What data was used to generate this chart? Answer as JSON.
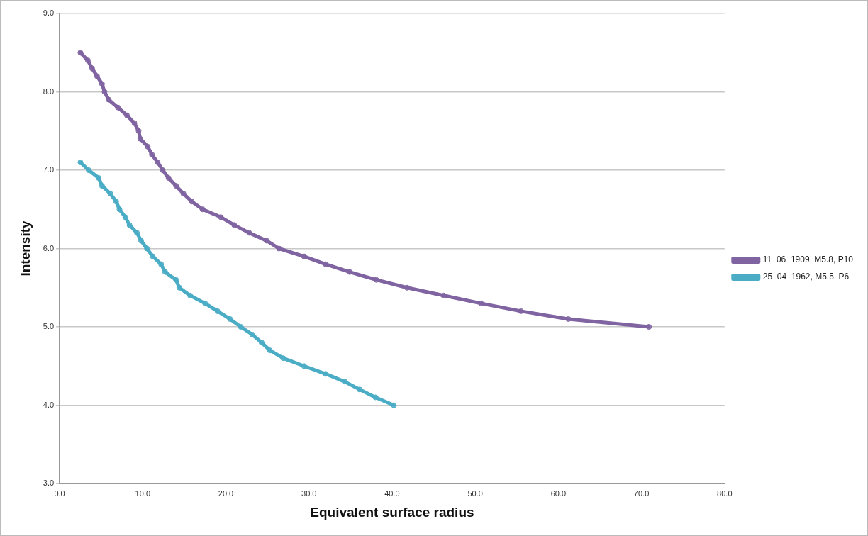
{
  "chart_data": {
    "type": "line",
    "xlabel": "Equivalent surface radius",
    "ylabel": "Intensity",
    "xlim": [
      0,
      80
    ],
    "xticks": [
      {
        "value": 0,
        "label": "0.0"
      },
      {
        "value": 10,
        "label": "10.0"
      },
      {
        "value": 20,
        "label": "20.0"
      },
      {
        "value": 30,
        "label": "30.0"
      },
      {
        "value": 40,
        "label": "40.0"
      },
      {
        "value": 50,
        "label": "50.0"
      },
      {
        "value": 60,
        "label": "60.0"
      },
      {
        "value": 70,
        "label": "70.0"
      },
      {
        "value": 80,
        "label": "80.0"
      }
    ],
    "ylim": [
      3,
      9
    ],
    "yticks": [
      {
        "value": 3,
        "label": "3.0"
      },
      {
        "value": 4,
        "label": "4.0"
      },
      {
        "value": 5,
        "label": "5.0"
      },
      {
        "value": 6,
        "label": "6.0"
      },
      {
        "value": 7,
        "label": "7.0"
      },
      {
        "value": 8,
        "label": "8.0"
      },
      {
        "value": 9,
        "label": "9.0"
      }
    ],
    "grid": "y",
    "legend": "right",
    "marker": "circle",
    "line_style": "solid",
    "series": [
      {
        "name": "11_06_1909, M5.8, P10",
        "color": "#8064a2",
        "x": [
          2.5,
          3.4,
          3.9,
          4.5,
          5.1,
          5.4,
          5.9,
          7.0,
          8.1,
          9.0,
          9.5,
          9.7,
          10.6,
          11.1,
          11.8,
          12.4,
          13.1,
          14.0,
          14.9,
          15.9,
          17.2,
          19.4,
          21.0,
          22.8,
          24.9,
          26.4,
          29.4,
          32.0,
          34.9,
          38.1,
          41.8,
          46.2,
          50.7,
          55.5,
          61.2,
          70.9
        ],
        "values": [
          8.5,
          8.4,
          8.3,
          8.2,
          8.1,
          8.0,
          7.9,
          7.8,
          7.7,
          7.6,
          7.5,
          7.4,
          7.3,
          7.2,
          7.1,
          7.0,
          6.9,
          6.8,
          6.7,
          6.6,
          6.5,
          6.4,
          6.3,
          6.2,
          6.1,
          6.0,
          5.9,
          5.8,
          5.7,
          5.6,
          5.5,
          5.4,
          5.3,
          5.2,
          5.1,
          5.0
        ]
      },
      {
        "name": "25_04_1962, M5.5, P6",
        "color": "#4bacc6",
        "x": [
          2.5,
          3.5,
          4.7,
          5.1,
          6.1,
          6.8,
          7.2,
          7.9,
          8.4,
          9.3,
          9.8,
          10.5,
          11.2,
          12.2,
          12.7,
          14.0,
          14.4,
          15.7,
          17.5,
          19.0,
          20.5,
          21.8,
          23.2,
          24.3,
          25.3,
          26.9,
          29.4,
          32.0,
          34.3,
          36.1,
          38.0,
          40.2
        ],
        "values": [
          7.1,
          7.0,
          6.9,
          6.8,
          6.7,
          6.6,
          6.5,
          6.4,
          6.3,
          6.2,
          6.1,
          6.0,
          5.9,
          5.8,
          5.7,
          5.6,
          5.5,
          5.4,
          5.3,
          5.2,
          5.1,
          5.0,
          4.9,
          4.8,
          4.7,
          4.6,
          4.5,
          4.4,
          4.3,
          4.2,
          4.1,
          4.0
        ]
      }
    ]
  }
}
